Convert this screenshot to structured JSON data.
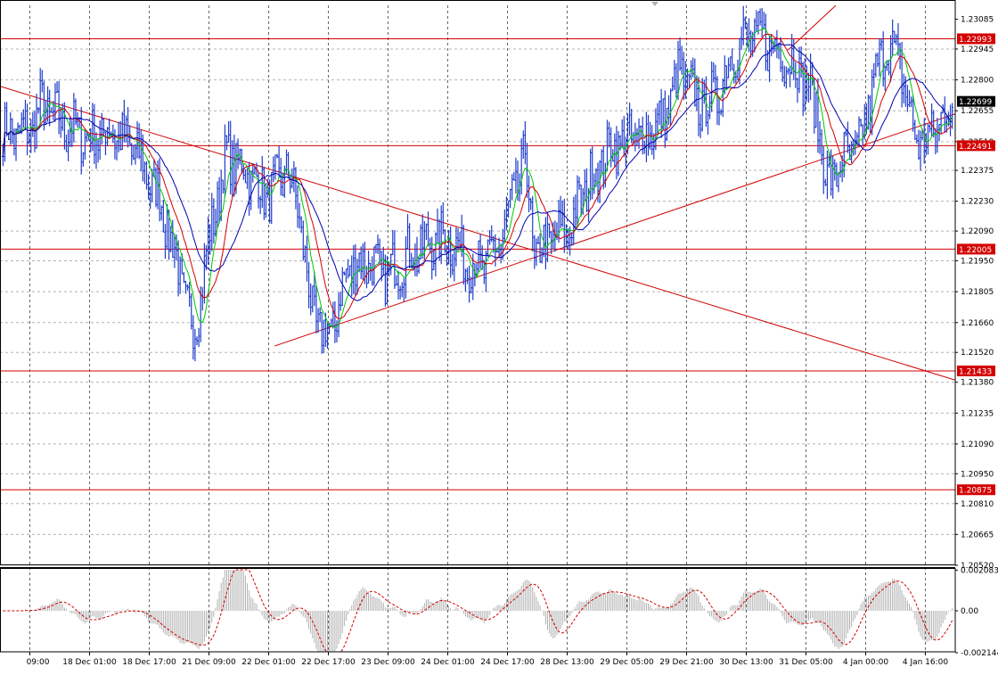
{
  "chart_data": {
    "type": "candlestick",
    "colors": {
      "background": "#ffffff",
      "grid": "#b4b4b4",
      "bars": "#1f3dcc",
      "ma_fast": "#00c800",
      "ma_mid": "#d40000",
      "ma_slow": "#0000b0",
      "levels": "#d40000",
      "trendlines": "#d40000",
      "histogram": "#b0b0b0",
      "signal": "#d40000",
      "current_price": "#000000"
    },
    "price_axis": {
      "ylim": [
        1.2052,
        1.2315
      ],
      "tick_labels": [
        "1.23085",
        "1.22945",
        "1.22800",
        "1.22655",
        "1.22510",
        "1.22375",
        "1.22230",
        "1.22090",
        "1.21950",
        "1.21805",
        "1.21660",
        "1.21520",
        "1.21380",
        "1.21235",
        "1.21090",
        "1.20950",
        "1.20810",
        "1.20665",
        "1.20520"
      ],
      "current_price": "1.22699"
    },
    "time_axis": {
      "xlim": [
        -0.5,
        15.5
      ],
      "tick_labels": [
        "09:00",
        "18 Dec 01:00",
        "18 Dec 17:00",
        "21 Dec 09:00",
        "22 Dec 01:00",
        "22 Dec 17:00",
        "23 Dec 09:00",
        "24 Dec 01:00",
        "24 Dec 17:00",
        "28 Dec 13:00",
        "29 Dec 05:00",
        "29 Dec 21:00",
        "30 Dec 13:00",
        "31 Dec 05:00",
        "4 Jan 00:00",
        "4 Jan 16:00"
      ]
    },
    "horizontal_levels": [
      "1.22993",
      "1.22491",
      "1.22005",
      "1.21433",
      "1.20875"
    ],
    "trendlines": [
      {
        "from": [
          -0.5,
          1.2277
        ],
        "to": [
          15.5,
          1.2139
        ]
      },
      {
        "from": [
          4.1,
          1.2155
        ],
        "to": [
          15.5,
          1.2264
        ]
      },
      {
        "from": [
          12.7,
          1.2294
        ],
        "to": [
          13.5,
          1.2315
        ]
      }
    ],
    "waypoints": [
      [
        0.0,
        1.2255
      ],
      [
        0.2,
        1.2268
      ],
      [
        0.6,
        1.2258
      ],
      [
        1.0,
        1.2253
      ],
      [
        1.4,
        1.2256
      ],
      [
        1.8,
        1.2245
      ],
      [
        2.2,
        1.2222
      ],
      [
        2.5,
        1.219
      ],
      [
        2.75,
        1.216
      ],
      [
        3.0,
        1.2205
      ],
      [
        3.3,
        1.2245
      ],
      [
        3.6,
        1.2238
      ],
      [
        4.0,
        1.2225
      ],
      [
        4.3,
        1.2238
      ],
      [
        4.5,
        1.222
      ],
      [
        4.7,
        1.2175
      ],
      [
        4.9,
        1.216
      ],
      [
        5.1,
        1.2165
      ],
      [
        5.3,
        1.219
      ],
      [
        5.6,
        1.2195
      ],
      [
        6.0,
        1.2188
      ],
      [
        6.3,
        1.2197
      ],
      [
        6.7,
        1.2203
      ],
      [
        7.0,
        1.2206
      ],
      [
        7.3,
        1.2195
      ],
      [
        7.6,
        1.2192
      ],
      [
        7.9,
        1.2205
      ],
      [
        8.1,
        1.2225
      ],
      [
        8.3,
        1.2245
      ],
      [
        8.45,
        1.2195
      ],
      [
        8.7,
        1.2205
      ],
      [
        9.0,
        1.2208
      ],
      [
        9.4,
        1.2235
      ],
      [
        9.8,
        1.225
      ],
      [
        10.2,
        1.2253
      ],
      [
        10.6,
        1.226
      ],
      [
        10.9,
        1.2285
      ],
      [
        11.2,
        1.2268
      ],
      [
        11.5,
        1.2272
      ],
      [
        11.8,
        1.2295
      ],
      [
        12.1,
        1.23
      ],
      [
        12.4,
        1.2297
      ],
      [
        12.8,
        1.2288
      ],
      [
        13.0,
        1.228
      ],
      [
        13.2,
        1.2262
      ],
      [
        13.35,
        1.223
      ],
      [
        13.6,
        1.2242
      ],
      [
        13.9,
        1.2248
      ],
      [
        14.1,
        1.2275
      ],
      [
        14.35,
        1.2298
      ],
      [
        14.6,
        1.2285
      ],
      [
        14.8,
        1.2255
      ],
      [
        15.0,
        1.225
      ],
      [
        15.3,
        1.2262
      ],
      [
        15.4,
        1.2268
      ]
    ],
    "oscillator": {
      "ylim": [
        -0.0021,
        0.0021
      ],
      "tick_labels": [
        "0.002083",
        "0.00",
        "-0.002144"
      ]
    }
  }
}
